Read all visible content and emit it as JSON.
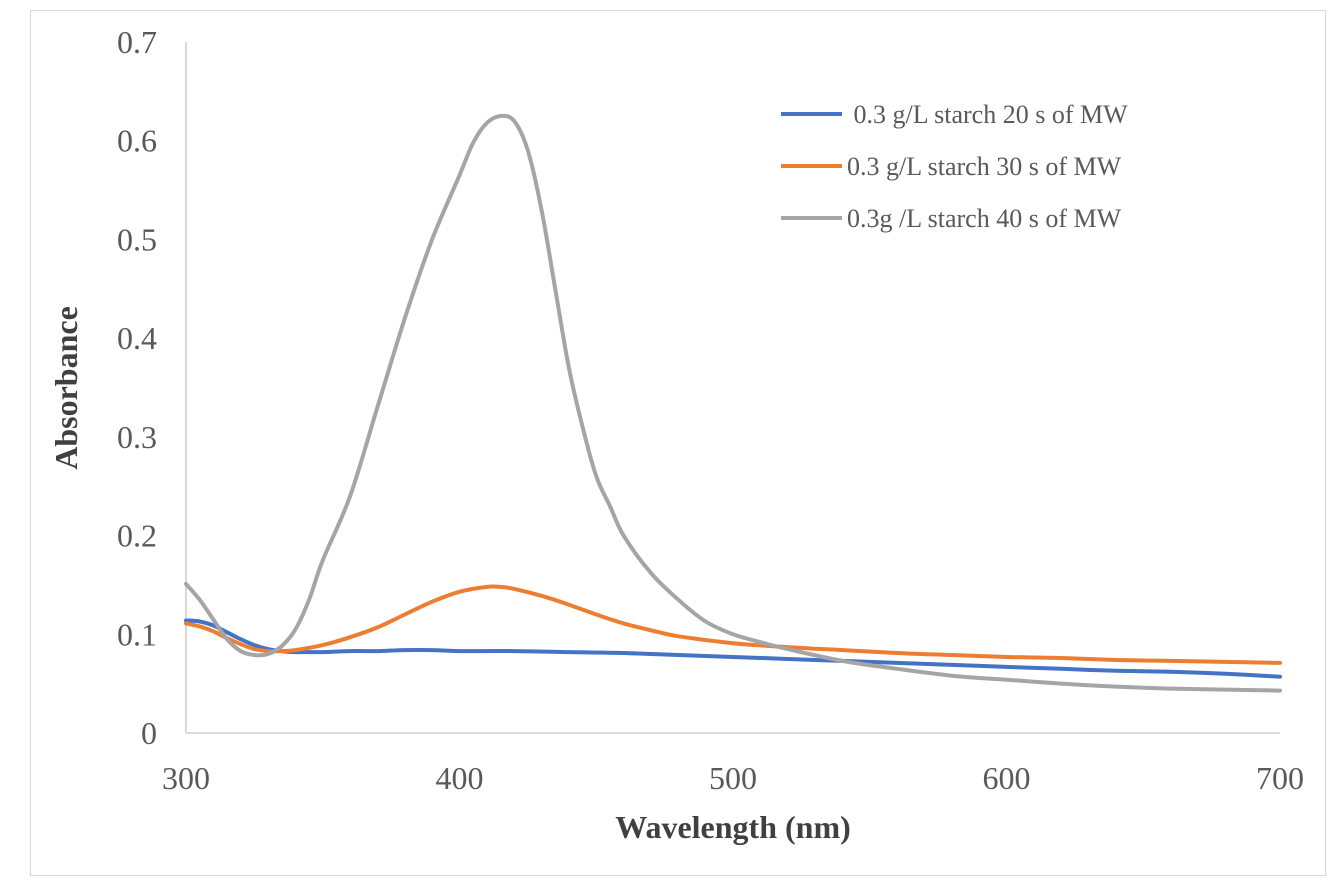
{
  "chart_data": {
    "type": "line",
    "title": "",
    "xlabel": "Wavelength (nm)",
    "ylabel": "Absorbance",
    "xlim": [
      300,
      700
    ],
    "ylim": [
      0,
      0.7
    ],
    "x_ticks": [
      "300",
      "400",
      "500",
      "600",
      "700"
    ],
    "y_ticks": [
      "0",
      "0.1",
      "0.2",
      "0.3",
      "0.4",
      "0.5",
      "0.6",
      "0.7"
    ],
    "grid": false,
    "legend_position": "top-right",
    "series": [
      {
        "name": " 0.3 g/L starch 20 s of MW",
        "color": "#4472c4",
        "x": [
          300,
          305,
          310,
          315,
          320,
          325,
          330,
          335,
          340,
          350,
          360,
          370,
          380,
          390,
          400,
          420,
          440,
          460,
          480,
          500,
          520,
          540,
          560,
          580,
          600,
          620,
          640,
          660,
          680,
          700
        ],
        "y": [
          0.114,
          0.113,
          0.109,
          0.102,
          0.095,
          0.089,
          0.085,
          0.083,
          0.082,
          0.082,
          0.083,
          0.083,
          0.084,
          0.084,
          0.083,
          0.083,
          0.082,
          0.081,
          0.079,
          0.077,
          0.075,
          0.073,
          0.071,
          0.069,
          0.067,
          0.065,
          0.063,
          0.062,
          0.06,
          0.057
        ]
      },
      {
        "name": "0.3 g/L starch 30 s of MW",
        "color": "#ed7d31",
        "x": [
          300,
          305,
          310,
          315,
          320,
          325,
          330,
          335,
          340,
          350,
          360,
          370,
          380,
          390,
          400,
          410,
          415,
          420,
          430,
          440,
          450,
          460,
          470,
          480,
          500,
          520,
          540,
          560,
          580,
          600,
          620,
          640,
          660,
          680,
          700
        ],
        "y": [
          0.111,
          0.108,
          0.103,
          0.096,
          0.09,
          0.085,
          0.083,
          0.083,
          0.084,
          0.089,
          0.097,
          0.107,
          0.12,
          0.133,
          0.143,
          0.148,
          0.148,
          0.146,
          0.139,
          0.13,
          0.12,
          0.111,
          0.104,
          0.098,
          0.091,
          0.087,
          0.084,
          0.081,
          0.079,
          0.077,
          0.076,
          0.074,
          0.073,
          0.072,
          0.071
        ]
      },
      {
        "name": "0.3g /L starch 40 s of MW",
        "color": "#a5a5a5",
        "x": [
          300,
          305,
          310,
          315,
          320,
          325,
          330,
          335,
          340,
          345,
          350,
          360,
          370,
          380,
          390,
          400,
          405,
          410,
          415,
          420,
          425,
          430,
          435,
          440,
          445,
          450,
          455,
          460,
          470,
          480,
          490,
          500,
          510,
          520,
          540,
          560,
          580,
          600,
          620,
          640,
          660,
          680,
          700
        ],
        "y": [
          0.151,
          0.135,
          0.115,
          0.095,
          0.083,
          0.079,
          0.08,
          0.088,
          0.105,
          0.135,
          0.175,
          0.24,
          0.33,
          0.42,
          0.5,
          0.565,
          0.598,
          0.618,
          0.625,
          0.62,
          0.59,
          0.53,
          0.45,
          0.37,
          0.31,
          0.26,
          0.23,
          0.2,
          0.162,
          0.135,
          0.113,
          0.1,
          0.092,
          0.085,
          0.073,
          0.065,
          0.058,
          0.054,
          0.05,
          0.047,
          0.045,
          0.044,
          0.043
        ]
      }
    ]
  }
}
